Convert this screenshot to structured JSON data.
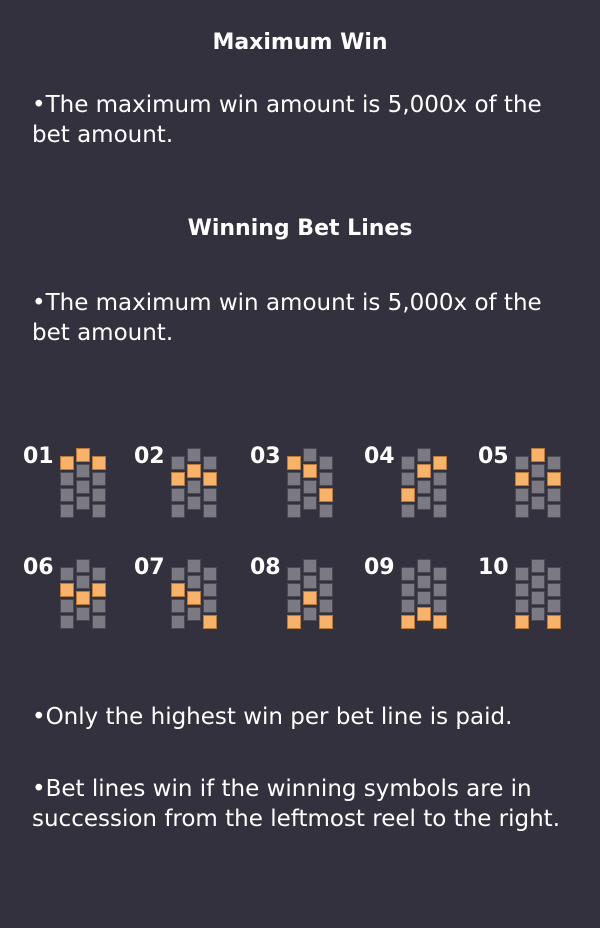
{
  "sections": {
    "max_win": {
      "title": "Maximum Win",
      "text": "•The maximum win amount is 5,000x of the bet amount."
    },
    "bet_lines": {
      "title": "Winning Bet Lines",
      "text": "•The maximum win amount is 5,000x of the bet amount."
    }
  },
  "paylines": [
    {
      "number": "01",
      "rows": [
        0,
        0,
        0
      ]
    },
    {
      "number": "02",
      "rows": [
        1,
        1,
        1
      ]
    },
    {
      "number": "03",
      "rows": [
        0,
        1,
        2
      ]
    },
    {
      "number": "04",
      "rows": [
        2,
        1,
        0
      ]
    },
    {
      "number": "05",
      "rows": [
        1,
        0,
        1
      ]
    },
    {
      "number": "06",
      "rows": [
        1,
        2,
        1
      ]
    },
    {
      "number": "07",
      "rows": [
        1,
        2,
        3
      ]
    },
    {
      "number": "08",
      "rows": [
        3,
        2,
        3
      ]
    },
    {
      "number": "09",
      "rows": [
        3,
        3,
        3
      ]
    },
    {
      "number": "10",
      "rows": [
        3,
        4,
        3
      ]
    }
  ],
  "rules": [
    "•Only the highest win per bet line is paid.",
    "•Bet lines win if the winning symbols are in succession from the leftmost reel to the right."
  ],
  "colors": {
    "background": "#32313d",
    "active_cell": "#f8b26a",
    "inactive_cell": "#7b7a82"
  }
}
